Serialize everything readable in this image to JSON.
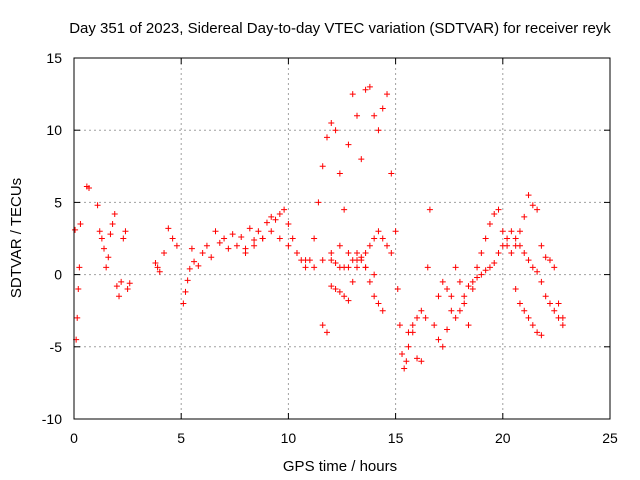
{
  "chart_data": {
    "type": "scatter",
    "title": "Day 351 of 2023, Sidereal Day-to-day VTEC variation (SDTVAR) for receiver reyk",
    "xlabel": "GPS time / hours",
    "ylabel": "SDTVAR / TECUs",
    "xlim": [
      0,
      25
    ],
    "ylim": [
      -10,
      15
    ],
    "xticks": [
      0,
      5,
      10,
      15,
      20,
      25
    ],
    "yticks": [
      -10,
      -5,
      0,
      5,
      10,
      15
    ],
    "grid": true,
    "marker": "+",
    "color": "#ff0000",
    "series": [
      {
        "name": "reyk",
        "x": [
          0.05,
          0.1,
          0.15,
          0.2,
          0.25,
          0.3,
          0.6,
          0.7,
          1.1,
          1.2,
          1.3,
          1.4,
          1.5,
          1.6,
          1.7,
          1.8,
          1.9,
          2.0,
          2.1,
          2.2,
          2.3,
          2.4,
          2.5,
          2.6,
          3.8,
          3.9,
          4.0,
          4.2,
          4.4,
          4.6,
          4.8,
          5.1,
          5.2,
          5.3,
          5.4,
          5.5,
          5.6,
          5.8,
          6.0,
          6.2,
          6.4,
          6.6,
          6.8,
          7.0,
          7.2,
          7.4,
          7.6,
          7.8,
          8.0,
          8.2,
          8.4,
          8.6,
          8.8,
          9.0,
          9.2,
          9.4,
          9.6,
          9.8,
          10.0,
          10.2,
          10.4,
          10.6,
          10.8,
          11.0,
          11.2,
          11.4,
          11.6,
          11.8,
          12.0,
          12.2,
          12.4,
          12.6,
          12.8,
          13.0,
          13.2,
          13.4,
          13.6,
          13.8,
          14.0,
          14.2,
          14.4,
          14.6,
          14.8,
          15.0,
          15.1,
          15.2,
          15.3,
          15.4,
          15.5,
          15.6,
          15.8,
          16.0,
          16.2,
          16.4,
          16.5,
          16.6,
          16.8,
          17.0,
          17.2,
          17.4,
          17.6,
          17.8,
          18.0,
          18.2,
          18.4,
          18.6,
          18.8,
          19.0,
          19.2,
          19.4,
          19.6,
          19.8,
          20.0,
          20.2,
          20.4,
          20.6,
          20.8,
          21.0,
          21.2,
          21.4,
          21.6,
          21.8,
          22.0,
          22.2,
          22.4,
          22.6,
          22.8,
          11.6,
          11.8,
          12.0,
          12.2,
          12.4,
          12.6,
          12.8,
          13.0,
          13.2,
          13.4,
          13.6,
          13.8,
          14.0,
          14.2,
          14.4,
          14.6,
          14.8,
          12.0,
          12.2,
          12.4,
          12.6,
          12.8,
          13.0,
          13.2,
          13.4,
          13.6,
          13.8,
          14.0,
          14.2,
          14.4,
          17.0,
          17.2,
          17.4,
          17.6,
          17.8,
          18.0,
          18.2,
          18.4,
          18.6,
          18.8,
          19.0,
          19.2,
          19.4,
          19.6,
          19.8,
          20.0,
          20.2,
          20.4,
          20.6,
          20.8,
          21.0,
          21.2,
          21.4,
          21.6,
          21.8,
          22.0,
          22.2,
          22.4,
          22.6,
          22.8,
          8.0,
          8.4,
          8.8,
          9.2,
          9.6,
          10.0,
          10.4,
          10.8,
          11.2,
          11.6,
          12.0,
          12.4,
          12.8,
          13.2,
          13.6,
          14.0,
          20.6,
          20.8,
          21.0,
          21.2,
          21.4,
          21.6,
          21.8,
          15.6,
          15.8,
          16.0,
          16.2
        ],
        "y": [
          3.1,
          -4.5,
          -3.0,
          -1.0,
          0.5,
          3.5,
          6.1,
          6.0,
          4.8,
          3.0,
          2.5,
          1.8,
          0.5,
          1.2,
          2.8,
          3.5,
          4.2,
          -0.8,
          -1.5,
          -0.5,
          2.5,
          3.0,
          -1.0,
          -0.6,
          0.8,
          0.5,
          0.2,
          1.5,
          3.2,
          2.5,
          2.0,
          -2.0,
          -1.2,
          -0.4,
          0.4,
          1.8,
          0.9,
          0.6,
          1.5,
          2.0,
          1.2,
          3.0,
          2.2,
          2.5,
          1.8,
          2.8,
          2.0,
          2.6,
          1.8,
          3.2,
          2.4,
          3.0,
          2.5,
          3.6,
          4.0,
          3.8,
          4.2,
          4.5,
          3.5,
          2.5,
          1.5,
          1.0,
          0.5,
          1.0,
          2.5,
          5.0,
          7.5,
          9.5,
          10.5,
          10.0,
          7.0,
          4.5,
          9.0,
          12.5,
          11.0,
          8.0,
          12.8,
          13.0,
          11.0,
          10.0,
          11.5,
          12.5,
          7.0,
          3.0,
          -1.0,
          -3.5,
          -5.5,
          -6.5,
          -6.0,
          -5.0,
          -4.0,
          -5.8,
          -6.0,
          -3.0,
          0.5,
          4.5,
          -3.5,
          -4.5,
          -5.0,
          -3.8,
          -1.5,
          0.5,
          -0.5,
          -2.0,
          -3.5,
          -1.0,
          0.5,
          1.5,
          2.5,
          3.5,
          4.2,
          4.5,
          3.0,
          2.0,
          1.5,
          2.0,
          3.0,
          4.0,
          5.5,
          4.8,
          4.5,
          2.0,
          1.2,
          1.0,
          0.5,
          -2.0,
          -3.0,
          -3.5,
          -4.0,
          -0.8,
          -1.0,
          -1.2,
          -1.5,
          -1.8,
          -0.5,
          0.5,
          1.0,
          1.5,
          2.0,
          2.5,
          3.0,
          2.5,
          2.0,
          1.5,
          1.0,
          0.8,
          0.5,
          0.5,
          0.5,
          1.0,
          1.5,
          1.2,
          0.5,
          -0.5,
          -1.5,
          -2.0,
          -2.5,
          -1.5,
          -0.5,
          -1.0,
          -2.5,
          -3.0,
          -2.5,
          -1.5,
          -0.8,
          -0.5,
          -0.2,
          0.0,
          0.3,
          0.5,
          0.8,
          1.5,
          2.0,
          2.5,
          3.0,
          2.5,
          2.0,
          1.5,
          1.0,
          0.5,
          0.2,
          -0.5,
          -1.5,
          -2.0,
          -2.5,
          -3.0,
          -3.5,
          1.5,
          2.0,
          2.5,
          3.0,
          2.5,
          2.0,
          1.5,
          1.0,
          0.5,
          1.0,
          1.5,
          2.0,
          1.5,
          1.0,
          0.5,
          0.0,
          -1.0,
          -2.0,
          -2.5,
          -3.0,
          -3.5,
          -4.0,
          -4.2,
          -4.0,
          -3.5,
          -3.0,
          -2.5
        ]
      }
    ]
  }
}
